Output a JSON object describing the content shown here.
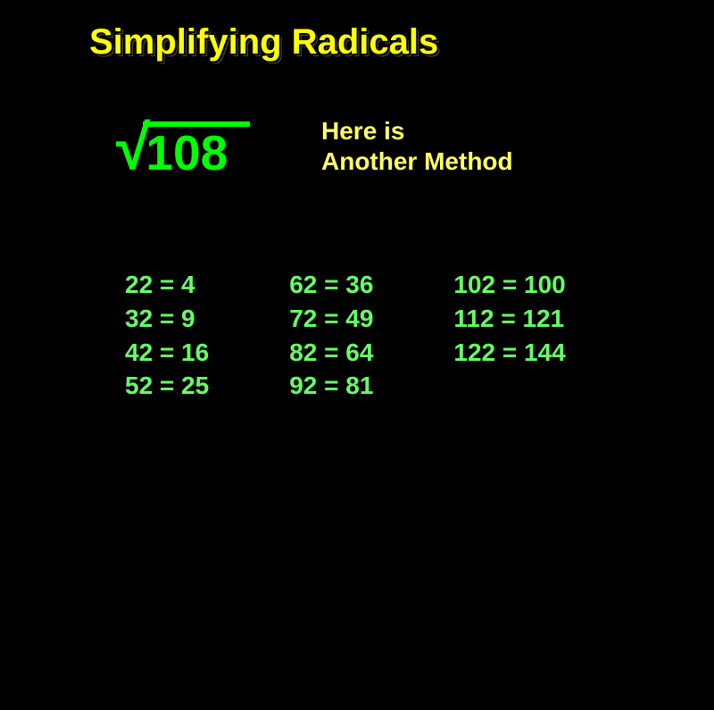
{
  "title": "Simplifying Radicals",
  "radical": {
    "number": "108"
  },
  "method": {
    "line1": "Here is",
    "line2": "Another Method"
  },
  "columns": {
    "col1": {
      "item1": "22 = 4",
      "item2": "32 = 9",
      "item3": "42 = 16",
      "item4": "52 = 25"
    },
    "col2": {
      "item1": "62 = 36",
      "item2": "72 = 49",
      "item3": "82 = 64",
      "item4": "92 = 81"
    },
    "col3": {
      "item1": "102 = 100",
      "item2": "112 = 121",
      "item3": "122 = 144"
    }
  },
  "colors": {
    "background": "#000000",
    "title": "#ffff00",
    "radical": "#00ff00",
    "method": "#ffff66",
    "squares": "#66ff66"
  }
}
